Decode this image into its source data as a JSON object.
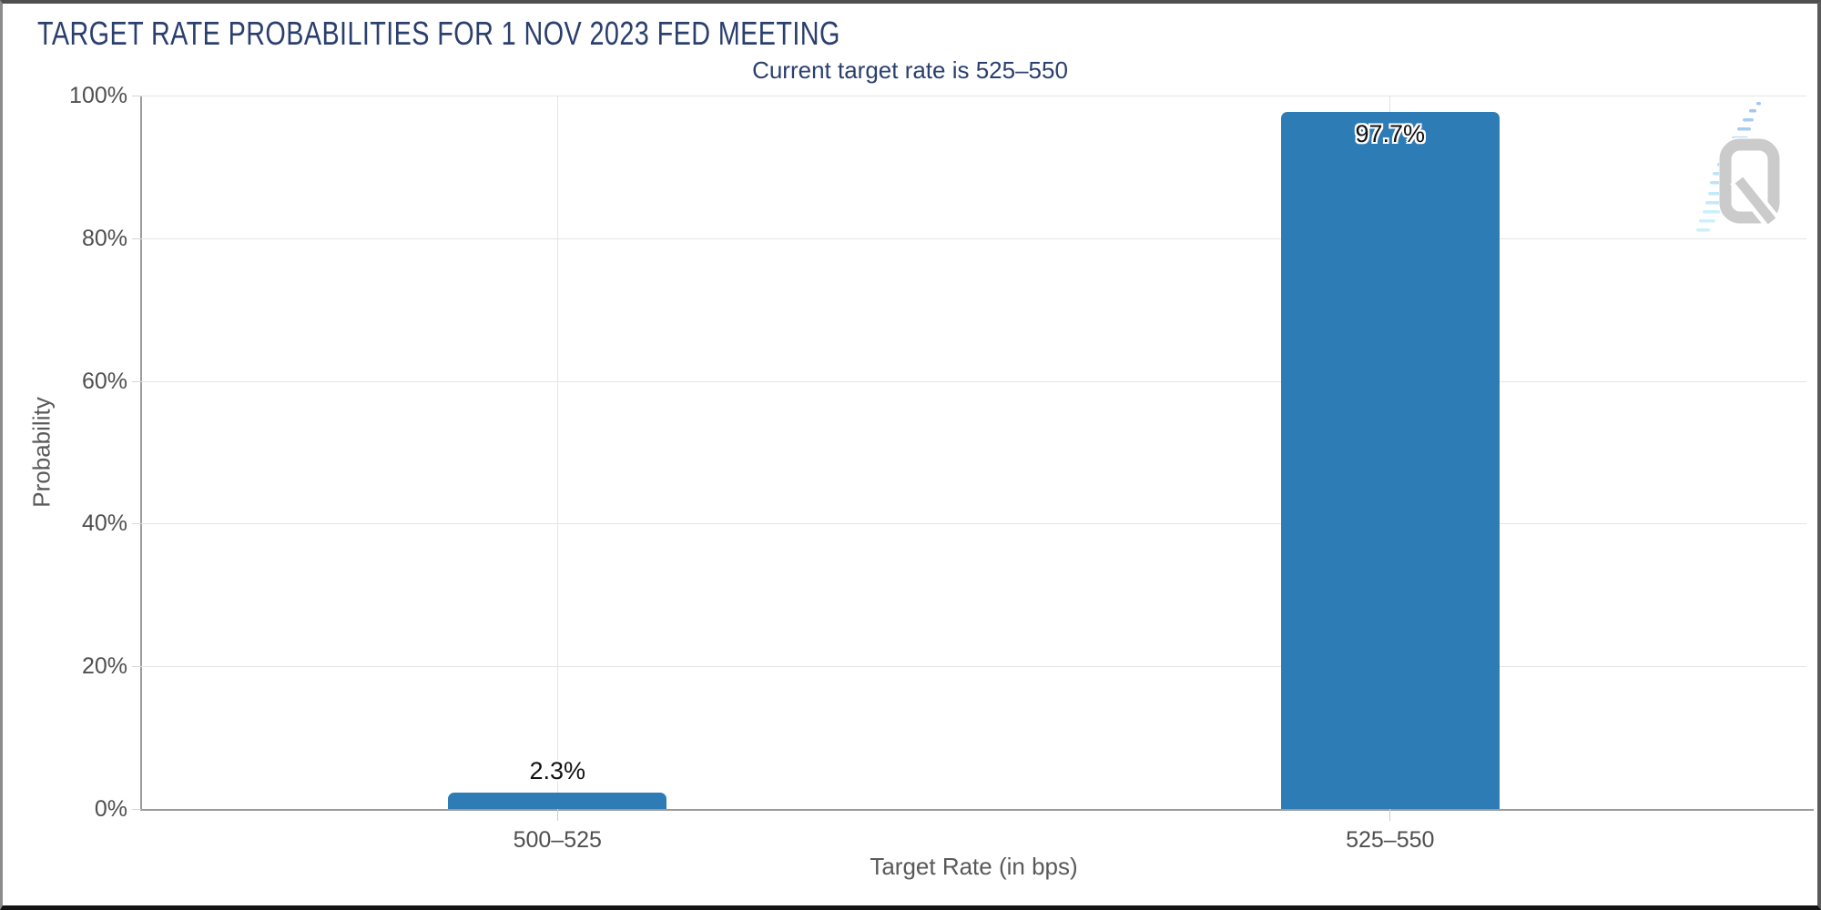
{
  "header": {
    "title": "TARGET RATE PROBABILITIES FOR 1 NOV 2023 FED MEETING",
    "subtitle": "Current target rate is 525–550"
  },
  "chart_data": {
    "type": "bar",
    "title": "TARGET RATE PROBABILITIES FOR 1 NOV 2023 FED MEETING",
    "subtitle": "Current target rate is 525–550",
    "categories": [
      "500–525",
      "525–550"
    ],
    "values": [
      2.3,
      97.7
    ],
    "value_labels": [
      "2.3%",
      "97.7%"
    ],
    "xlabel": "Target Rate (in bps)",
    "ylabel": "Probability",
    "ylim": [
      0,
      100
    ],
    "yticks": [
      0,
      20,
      40,
      60,
      80,
      100
    ],
    "ytick_labels": [
      "0%",
      "20%",
      "40%",
      "60%",
      "80%",
      "100%"
    ],
    "grid": true,
    "legend": "none",
    "bar_color": "#2e7cb5"
  },
  "colors": {
    "title_navy": "#2a3f6e",
    "bar_blue": "#2e7cb5",
    "axis_text_gray": "#4f4f4f",
    "axis_title_gray": "#595959",
    "gridline_gray": "#e4e4e4",
    "axis_line_gray": "#9b9b9b",
    "logo_gray": "#cbcbcb",
    "logo_light_blue": "#bfe3f7",
    "frame_border": "#4f4f4f"
  },
  "logo": {
    "letter": "Q"
  }
}
